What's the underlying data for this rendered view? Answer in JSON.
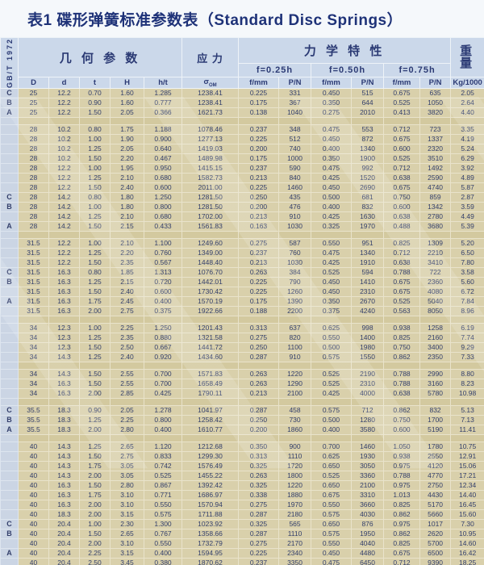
{
  "title": "表1 碟形弹簧标准参数表（Standard Disc Springs）",
  "standard": "GB/T 1972",
  "header": {
    "geometry": "几 何 参 数",
    "stress": "应 力",
    "mechanical": "力 学 特 性",
    "weight_line1": "重",
    "weight_line2": "量",
    "weight_unit": "Kg/1000",
    "sigma": "σ",
    "sigma_sub": "OM",
    "f_groups": [
      "f=0.25h",
      "f=0.50h",
      "f=0.75h"
    ],
    "geo_cols": [
      "D",
      "d",
      "t",
      "H",
      "h/t"
    ],
    "f_label": "f/mm",
    "p_label": "P/N"
  },
  "groups": [
    {
      "rows": [
        {
          "letter": "C",
          "v": [
            "25",
            "12.2",
            "0.70",
            "1.60",
            "1.285",
            "1238.41",
            "0.225",
            "331",
            "0.450",
            "515",
            "0.675",
            "635",
            "2.05"
          ]
        },
        {
          "letter": "B",
          "v": [
            "25",
            "12.2",
            "0.90",
            "1.60",
            "0.777",
            "1238.41",
            "0.175",
            "367",
            "0.350",
            "644",
            "0.525",
            "1050",
            "2.64"
          ]
        },
        {
          "letter": "A",
          "v": [
            "25",
            "12.2",
            "1.50",
            "2.05",
            "0.366",
            "1621.73",
            "0.138",
            "1040",
            "0.275",
            "2010",
            "0.413",
            "3820",
            "4.40"
          ]
        }
      ]
    },
    {
      "rows": [
        {
          "letter": "",
          "v": [
            "28",
            "10.2",
            "0.80",
            "1.75",
            "1.188",
            "1078.46",
            "0.237",
            "348",
            "0.475",
            "553",
            "0.712",
            "723",
            "3.35"
          ]
        },
        {
          "letter": "",
          "v": [
            "28",
            "10.2",
            "1.00",
            "1.90",
            "0.900",
            "1277.13",
            "0.225",
            "512",
            "0.450",
            "872",
            "0.675",
            "1337",
            "4.19"
          ]
        },
        {
          "letter": "",
          "v": [
            "28",
            "10.2",
            "1.25",
            "2.05",
            "0.640",
            "1419.03",
            "0.200",
            "740",
            "0.400",
            "1340",
            "0.600",
            "2320",
            "5.24"
          ]
        },
        {
          "letter": "",
          "v": [
            "28",
            "10.2",
            "1.50",
            "2.20",
            "0.467",
            "1489.98",
            "0.175",
            "1000",
            "0.350",
            "1900",
            "0.525",
            "3510",
            "6.29"
          ]
        },
        {
          "letter": "",
          "v": [
            "28",
            "12.2",
            "1.00",
            "1.95",
            "0.950",
            "1415.15",
            "0.237",
            "590",
            "0.475",
            "992",
            "0.712",
            "1492",
            "3.92"
          ]
        },
        {
          "letter": "",
          "v": [
            "28",
            "12.2",
            "1.25",
            "2.10",
            "0.680",
            "1582.73",
            "0.213",
            "840",
            "0.425",
            "1520",
            "0.638",
            "2590",
            "4.89"
          ]
        },
        {
          "letter": "",
          "v": [
            "28",
            "12.2",
            "1.50",
            "2.40",
            "0.600",
            "2011.00",
            "0.225",
            "1460",
            "0.450",
            "2690",
            "0.675",
            "4740",
            "5.87"
          ]
        },
        {
          "letter": "C",
          "v": [
            "28",
            "14.2",
            "0.80",
            "1.80",
            "1.250",
            "1281.50",
            "0.250",
            "435",
            "0.500",
            "681",
            "0.750",
            "859",
            "2.87"
          ]
        },
        {
          "letter": "B",
          "v": [
            "28",
            "14.2",
            "1.00",
            "1.80",
            "0.800",
            "1281.50",
            "0.200",
            "476",
            "0.400",
            "832",
            "0.600",
            "1342",
            "3.59"
          ]
        },
        {
          "letter": "",
          "v": [
            "28",
            "14.2",
            "1.25",
            "2.10",
            "0.680",
            "1702.00",
            "0.213",
            "910",
            "0.425",
            "1630",
            "0.638",
            "2780",
            "4.49"
          ]
        },
        {
          "letter": "A",
          "v": [
            "28",
            "14.2",
            "1.50",
            "2.15",
            "0.433",
            "1561.83",
            "0.163",
            "1030",
            "0.325",
            "1970",
            "0.488",
            "3680",
            "5.39"
          ]
        }
      ]
    },
    {
      "rows": [
        {
          "letter": "",
          "v": [
            "31.5",
            "12.2",
            "1.00",
            "2.10",
            "1.100",
            "1249.60",
            "0.275",
            "587",
            "0.550",
            "951",
            "0.825",
            "1309",
            "5.20"
          ]
        },
        {
          "letter": "",
          "v": [
            "31.5",
            "12.2",
            "1.25",
            "2.20",
            "0.760",
            "1349.00",
            "0.237",
            "760",
            "0.475",
            "1340",
            "0.712",
            "2210",
            "6.50"
          ]
        },
        {
          "letter": "",
          "v": [
            "31.5",
            "12.2",
            "1.50",
            "2.35",
            "0.567",
            "1448.40",
            "0.213",
            "1030",
            "0.425",
            "1910",
            "0.638",
            "3410",
            "7.80"
          ]
        },
        {
          "letter": "C",
          "v": [
            "31.5",
            "16.3",
            "0.80",
            "1.85",
            "1.313",
            "1076.70",
            "0.263",
            "384",
            "0.525",
            "594",
            "0.788",
            "722",
            "3.58"
          ]
        },
        {
          "letter": "B",
          "v": [
            "31.5",
            "16.3",
            "1.25",
            "2.15",
            "0.720",
            "1442.01",
            "0.225",
            "790",
            "0.450",
            "1410",
            "0.675",
            "2360",
            "5.60"
          ]
        },
        {
          "letter": "",
          "v": [
            "31.5",
            "16.3",
            "1.50",
            "2.40",
            "0.600",
            "1730.42",
            "0.225",
            "1260",
            "0.450",
            "2310",
            "0.675",
            "4080",
            "6.72"
          ]
        },
        {
          "letter": "A",
          "v": [
            "31.5",
            "16.3",
            "1.75",
            "2.45",
            "0.400",
            "1570.19",
            "0.175",
            "1390",
            "0.350",
            "2670",
            "0.525",
            "5040",
            "7.84"
          ]
        },
        {
          "letter": "",
          "v": [
            "31.5",
            "16.3",
            "2.00",
            "2.75",
            "0.375",
            "1922.66",
            "0.188",
            "2200",
            "0.375",
            "4240",
            "0.563",
            "8050",
            "8.96"
          ]
        }
      ]
    },
    {
      "rows": [
        {
          "letter": "",
          "v": [
            "34",
            "12.3",
            "1.00",
            "2.25",
            "1.250",
            "1201.43",
            "0.313",
            "637",
            "0.625",
            "998",
            "0.938",
            "1258",
            "6.19"
          ]
        },
        {
          "letter": "",
          "v": [
            "34",
            "12.3",
            "1.25",
            "2.35",
            "0.880",
            "1321.58",
            "0.275",
            "820",
            "0.550",
            "1400",
            "0.825",
            "2160",
            "7.74"
          ]
        },
        {
          "letter": "",
          "v": [
            "34",
            "12.3",
            "1.50",
            "2.50",
            "0.667",
            "1441.72",
            "0.250",
            "1100",
            "0.500",
            "1980",
            "0.750",
            "3400",
            "9.29"
          ]
        },
        {
          "letter": "",
          "v": [
            "34",
            "14.3",
            "1.25",
            "2.40",
            "0.920",
            "1434.60",
            "0.287",
            "910",
            "0.575",
            "1550",
            "0.862",
            "2350",
            "7.33"
          ]
        }
      ]
    },
    {
      "rows": [
        {
          "letter": "",
          "v": [
            "34",
            "14.3",
            "1.50",
            "2.55",
            "0.700",
            "1571.83",
            "0.263",
            "1220",
            "0.525",
            "2190",
            "0.788",
            "2990",
            "8.80"
          ]
        },
        {
          "letter": "",
          "v": [
            "34",
            "16.3",
            "1.50",
            "2.55",
            "0.700",
            "1658.49",
            "0.263",
            "1290",
            "0.525",
            "2310",
            "0.788",
            "3160",
            "8.23"
          ]
        },
        {
          "letter": "",
          "v": [
            "34",
            "16.3",
            "2.00",
            "2.85",
            "0.425",
            "1790.11",
            "0.213",
            "2100",
            "0.425",
            "4000",
            "0.638",
            "5780",
            "10.98"
          ]
        }
      ]
    },
    {
      "rows": [
        {
          "letter": "C",
          "v": [
            "35.5",
            "18.3",
            "0.90",
            "2.05",
            "1.278",
            "1041.97",
            "0.287",
            "458",
            "0.575",
            "712",
            "0.862",
            "832",
            "5.13"
          ]
        },
        {
          "letter": "B",
          "v": [
            "35.5",
            "18.3",
            "1.25",
            "2.25",
            "0.800",
            "1258.42",
            "0.250",
            "730",
            "0.500",
            "1280",
            "0.750",
            "1700",
            "7.13"
          ]
        },
        {
          "letter": "A",
          "v": [
            "35.5",
            "18.3",
            "2.00",
            "2.80",
            "0.400",
            "1610.77",
            "0.200",
            "1860",
            "0.400",
            "3580",
            "0.600",
            "5190",
            "11.41"
          ]
        }
      ]
    },
    {
      "rows": [
        {
          "letter": "",
          "v": [
            "40",
            "14.3",
            "1.25",
            "2.65",
            "1.120",
            "1212.68",
            "0.350",
            "900",
            "0.700",
            "1460",
            "1.050",
            "1780",
            "10.75"
          ]
        },
        {
          "letter": "",
          "v": [
            "40",
            "14.3",
            "1.50",
            "2.75",
            "0.833",
            "1299.30",
            "0.313",
            "1110",
            "0.625",
            "1930",
            "0.938",
            "2550",
            "12.91"
          ]
        },
        {
          "letter": "",
          "v": [
            "40",
            "14.3",
            "1.75",
            "3.05",
            "0.742",
            "1576.49",
            "0.325",
            "1720",
            "0.650",
            "3050",
            "0.975",
            "4120",
            "15.06"
          ]
        },
        {
          "letter": "",
          "v": [
            "40",
            "14.3",
            "2.00",
            "3.05",
            "0.525",
            "1455.22",
            "0.263",
            "1800",
            "0.525",
            "3360",
            "0.788",
            "4770",
            "17.21"
          ]
        },
        {
          "letter": "",
          "v": [
            "40",
            "16.3",
            "1.50",
            "2.80",
            "0.867",
            "1392.42",
            "0.325",
            "1220",
            "0.650",
            "2100",
            "0.975",
            "2750",
            "12.34"
          ]
        },
        {
          "letter": "",
          "v": [
            "40",
            "16.3",
            "1.75",
            "3.10",
            "0.771",
            "1686.97",
            "0.338",
            "1880",
            "0.675",
            "3310",
            "1.013",
            "4430",
            "14.40"
          ]
        },
        {
          "letter": "",
          "v": [
            "40",
            "16.3",
            "2.00",
            "3.10",
            "0.550",
            "1570.94",
            "0.275",
            "1970",
            "0.550",
            "3660",
            "0.825",
            "5170",
            "16.45"
          ]
        },
        {
          "letter": "",
          "v": [
            "40",
            "18.3",
            "2.00",
            "3.15",
            "0.575",
            "1711.88",
            "0.287",
            "2180",
            "0.575",
            "4030",
            "0.862",
            "5660",
            "15.60"
          ]
        },
        {
          "letter": "C",
          "v": [
            "40",
            "20.4",
            "1.00",
            "2.30",
            "1.300",
            "1023.92",
            "0.325",
            "565",
            "0.650",
            "876",
            "0.975",
            "1017",
            "7.30"
          ]
        },
        {
          "letter": "B",
          "v": [
            "40",
            "20.4",
            "1.50",
            "2.65",
            "0.767",
            "1358.66",
            "0.287",
            "1110",
            "0.575",
            "1950",
            "0.862",
            "2620",
            "10.95"
          ]
        },
        {
          "letter": "",
          "v": [
            "40",
            "20.4",
            "2.00",
            "3.10",
            "0.550",
            "1732.79",
            "0.275",
            "2170",
            "0.550",
            "4040",
            "0.825",
            "5700",
            "14.60"
          ]
        },
        {
          "letter": "A",
          "v": [
            "40",
            "20.4",
            "2.25",
            "3.15",
            "0.400",
            "1594.95",
            "0.225",
            "2340",
            "0.450",
            "4480",
            "0.675",
            "6500",
            "16.42"
          ]
        },
        {
          "letter": "",
          "v": [
            "40",
            "20.4",
            "2.50",
            "3.45",
            "0.380",
            "1870.62",
            "0.237",
            "3350",
            "0.475",
            "6450",
            "0.712",
            "9390",
            "18.25"
          ]
        }
      ]
    }
  ]
}
